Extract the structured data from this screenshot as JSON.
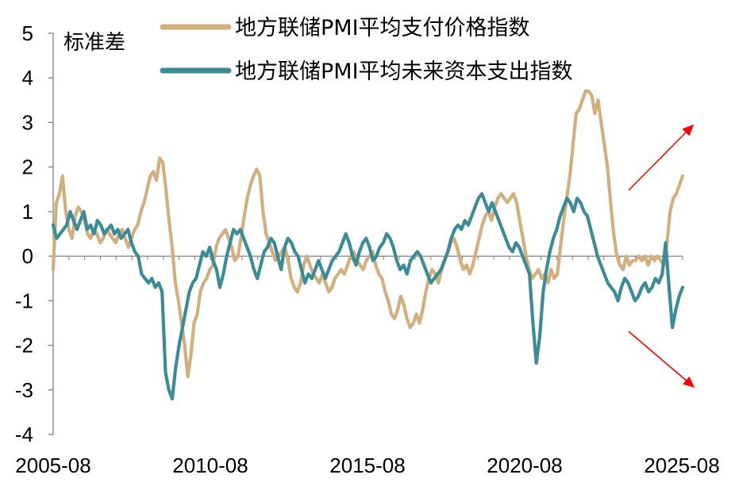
{
  "chart_data": {
    "type": "line",
    "ylabel": "标准差",
    "ylim": [
      -4,
      5
    ],
    "yticks": [
      "5",
      "4",
      "3",
      "2",
      "1",
      "0",
      "-1",
      "-2",
      "-3",
      "-4"
    ],
    "xtick_labels": [
      "2005-08",
      "2010-08",
      "2015-08",
      "2020-08",
      "2025-08"
    ],
    "x_start": "2005-08",
    "x_end": "2025-08",
    "grid": false,
    "legend_position": "top",
    "series": [
      {
        "name": "地方联储PMI平均支付价格指数",
        "color": "#D2B07E",
        "values": [
          -0.3,
          1.2,
          1.4,
          1.8,
          1.0,
          0.6,
          0.4,
          0.9,
          1.1,
          1.0,
          0.8,
          0.5,
          0.4,
          0.6,
          0.5,
          0.3,
          0.4,
          0.6,
          0.5,
          0.4,
          0.3,
          0.5,
          0.6,
          0.4,
          0.2,
          0.4,
          0.6,
          0.7,
          1.0,
          1.2,
          1.5,
          1.8,
          1.9,
          1.7,
          2.2,
          2.1,
          1.5,
          0.8,
          0.2,
          -0.6,
          -1.0,
          -1.5,
          -2.0,
          -2.7,
          -2.2,
          -1.5,
          -1.3,
          -0.8,
          -0.6,
          -0.5,
          -0.3,
          -0.2,
          0.2,
          0.4,
          0.5,
          0.6,
          0.4,
          0.2,
          -0.1,
          0.0,
          0.4,
          0.9,
          1.3,
          1.6,
          1.8,
          1.95,
          1.8,
          1.0,
          0.5,
          0.3,
          0.1,
          -0.1,
          0.0,
          0.1,
          0.2,
          -0.1,
          -0.5,
          -0.7,
          -0.8,
          -0.6,
          -0.2,
          0.0,
          -0.2,
          -0.4,
          -0.5,
          -0.6,
          -0.4,
          -0.6,
          -0.8,
          -0.7,
          -0.5,
          -0.4,
          -0.3,
          -0.4,
          -0.2,
          0.0,
          0.1,
          -0.1,
          -0.2,
          -0.3,
          -0.1,
          0.0,
          0.1,
          -0.2,
          -0.4,
          -0.5,
          -0.8,
          -1.0,
          -1.3,
          -1.4,
          -1.2,
          -0.9,
          -1.1,
          -1.4,
          -1.6,
          -1.5,
          -1.3,
          -1.5,
          -1.2,
          -0.8,
          -0.5,
          -0.3,
          -0.4,
          -0.6,
          -0.3,
          -0.1,
          0.1,
          0.3,
          0.4,
          0.2,
          -0.1,
          -0.3,
          -0.2,
          -0.4,
          -0.2,
          0.1,
          0.4,
          0.7,
          0.9,
          1.0,
          0.8,
          1.1,
          1.3,
          1.4,
          1.3,
          1.2,
          1.3,
          1.4,
          1.2,
          0.8,
          0.4,
          0.0,
          -0.3,
          -0.5,
          -0.4,
          -0.3,
          -0.5,
          -0.4,
          -0.6,
          -0.3,
          -0.5,
          -0.4,
          0.2,
          0.8,
          1.3,
          1.8,
          2.5,
          3.2,
          3.3,
          3.5,
          3.7,
          3.7,
          3.6,
          3.2,
          3.5,
          3.0,
          2.5,
          2.0,
          1.2,
          0.5,
          0.0,
          -0.2,
          -0.3,
          0.0,
          -0.2,
          -0.1,
          -0.1,
          0.0,
          -0.1,
          0.0,
          -0.2,
          0.0,
          -0.1,
          0.0,
          -0.1,
          -0.2,
          0.3,
          1.0,
          1.3,
          1.4,
          1.6,
          1.8
        ]
      },
      {
        "name": "地方联储PMI平均未来资本支出指数",
        "color": "#3C8C98",
        "values": [
          0.7,
          0.4,
          0.5,
          0.6,
          0.7,
          1.0,
          0.8,
          0.6,
          0.8,
          1.0,
          0.6,
          0.7,
          0.5,
          0.8,
          0.7,
          0.5,
          0.6,
          0.7,
          0.5,
          0.6,
          0.4,
          0.5,
          0.6,
          0.3,
          0.1,
          0.0,
          -0.4,
          -0.5,
          -0.6,
          -0.5,
          -0.7,
          -0.6,
          -0.8,
          -2.6,
          -3.0,
          -3.2,
          -2.5,
          -2.0,
          -1.6,
          -1.2,
          -0.8,
          -0.6,
          -0.5,
          -0.2,
          0.1,
          0.0,
          0.2,
          -0.1,
          -0.3,
          -0.7,
          -0.4,
          0.0,
          0.3,
          0.6,
          0.5,
          0.6,
          0.4,
          0.2,
          0.0,
          -0.3,
          -0.5,
          -0.2,
          0.1,
          0.2,
          0.4,
          0.3,
          0.0,
          -0.3,
          0.2,
          0.4,
          0.3,
          0.1,
          0.0,
          -0.3,
          -0.6,
          -0.4,
          -0.5,
          -0.3,
          -0.1,
          -0.3,
          -0.5,
          -0.3,
          -0.1,
          0.0,
          0.1,
          0.3,
          0.5,
          0.3,
          0.0,
          -0.2,
          0.1,
          0.3,
          0.4,
          0.2,
          -0.1,
          0.0,
          0.2,
          0.3,
          0.5,
          0.4,
          0.2,
          -0.1,
          -0.3,
          -0.2,
          -0.4,
          -0.1,
          0.0,
          0.1,
          0.0,
          -0.2,
          -0.4,
          -0.6,
          -0.5,
          -0.4,
          -0.3,
          -0.1,
          0.1,
          0.4,
          0.6,
          0.7,
          0.6,
          0.8,
          0.7,
          0.9,
          1.1,
          1.3,
          1.4,
          1.2,
          1.0,
          1.2,
          1.0,
          0.8,
          0.6,
          0.4,
          0.2,
          0.1,
          0.3,
          0.2,
          0.0,
          -0.2,
          -0.4,
          -1.5,
          -2.4,
          -1.8,
          -0.8,
          -0.3,
          0.1,
          0.4,
          0.6,
          0.9,
          1.1,
          1.3,
          1.2,
          1.0,
          1.3,
          1.2,
          1.0,
          0.9,
          0.6,
          0.3,
          0.0,
          -0.2,
          -0.4,
          -0.6,
          -0.7,
          -0.8,
          -1.0,
          -0.7,
          -0.5,
          -0.6,
          -0.8,
          -1.0,
          -0.9,
          -0.7,
          -0.6,
          -0.8,
          -0.7,
          -0.5,
          -0.6,
          -0.4,
          0.3,
          -0.7,
          -1.6,
          -1.2,
          -0.9,
          -0.7
        ]
      }
    ],
    "annotations": [
      {
        "type": "arrow",
        "direction": "up-right",
        "color": "#FF0000"
      },
      {
        "type": "arrow",
        "direction": "down-right",
        "color": "#FF0000"
      }
    ]
  }
}
